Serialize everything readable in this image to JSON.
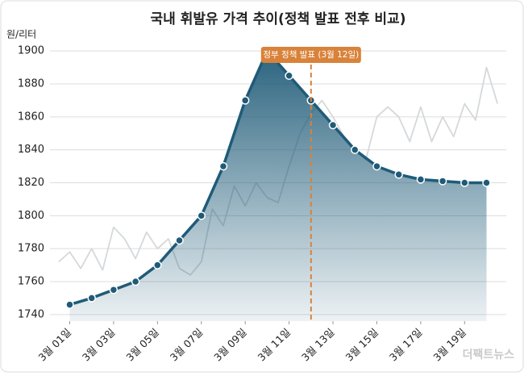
{
  "chart_data": {
    "type": "line",
    "title": "국내 휘발유 가격 추이(정책 발표 전후 비교)",
    "y_label": "원/리터",
    "series": [
      {
        "color": "#d5d8db",
        "x": [
          0.5,
          1,
          1.5,
          2,
          2.5,
          3,
          3.5,
          4,
          4.5,
          5,
          5.5,
          6,
          6.5,
          7,
          7.5,
          8,
          8.5,
          9,
          9.5,
          10,
          10.5,
          11,
          11.5,
          12,
          12.5,
          13,
          13.5,
          14,
          14.5,
          15,
          15.5,
          16,
          16.5,
          17,
          17.5,
          18,
          18.5,
          19,
          19.5,
          20,
          20.5
        ],
        "values": [
          1772,
          1778,
          1768,
          1780,
          1767,
          1793,
          1786,
          1774,
          1790,
          1780,
          1786,
          1768,
          1764,
          1772,
          1804,
          1794,
          1818,
          1806,
          1820,
          1811,
          1808,
          1830,
          1850,
          1862,
          1870,
          1860,
          1848,
          1840,
          1834,
          1860,
          1866,
          1860,
          1845,
          1866,
          1845,
          1860,
          1848,
          1868,
          1858,
          1890,
          1868
        ]
      },
      {
        "color": "#1f5b78",
        "x": [
          1,
          2,
          3,
          4,
          5,
          6,
          7,
          8,
          9,
          10,
          11,
          12,
          13,
          14,
          15,
          16,
          17,
          18,
          19,
          20
        ],
        "values": [
          1746,
          1750,
          1755,
          1760,
          1770,
          1785,
          1800,
          1830,
          1870,
          1900,
          1885,
          1870,
          1855,
          1840,
          1830,
          1825,
          1822,
          1821,
          1820,
          1820
        ]
      }
    ],
    "xlim": [
      0.1,
      20.9
    ],
    "xticks": [
      {
        "value": 1,
        "label": "3월 01일"
      },
      {
        "value": 3,
        "label": "3월 03일"
      },
      {
        "value": 5,
        "label": "3월 05일"
      },
      {
        "value": 7,
        "label": "3월 07일"
      },
      {
        "value": 9,
        "label": "3월 09일"
      },
      {
        "value": 11,
        "label": "3월 11일"
      },
      {
        "value": 13,
        "label": "3월 13일"
      },
      {
        "value": 15,
        "label": "3월 15일"
      },
      {
        "value": 17,
        "label": "3월 17일"
      },
      {
        "value": 19,
        "label": "3월 19일"
      }
    ],
    "ylim": [
      1736,
      1904
    ],
    "yticks": [
      1740,
      1760,
      1780,
      1800,
      1820,
      1840,
      1860,
      1880,
      1900
    ],
    "grid": true,
    "annotation": {
      "x": 12,
      "text": "정부 정책 발표 (3월 12일)",
      "color": "#d9823a"
    },
    "watermark": "더팩트뉴스"
  }
}
